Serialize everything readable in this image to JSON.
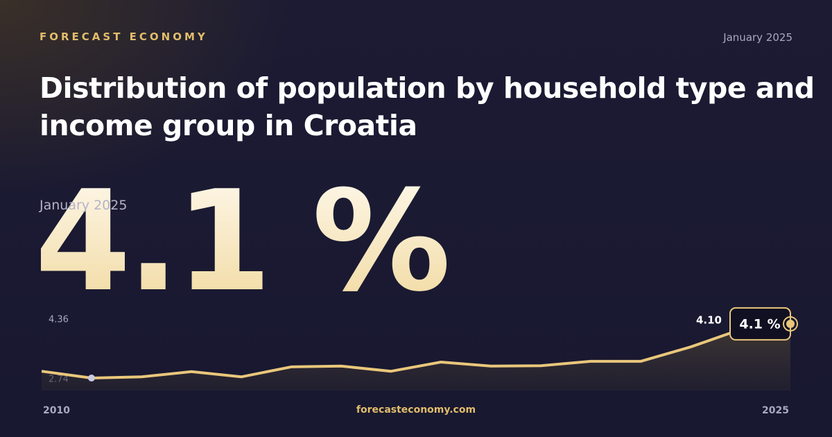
{
  "header": {
    "brand": "FORECAST ECONOMY",
    "date": "January 2025"
  },
  "title": "Distribution of population by household type and income group in Croatia",
  "headline": {
    "date": "January 2025",
    "value": "4.1 %"
  },
  "footer": {
    "site": "forecasteconomy.com"
  },
  "chart_data": {
    "type": "line",
    "x": [
      2010,
      2011,
      2012,
      2013,
      2014,
      2015,
      2016,
      2017,
      2018,
      2019,
      2020,
      2021,
      2022,
      2023,
      2024,
      2025
    ],
    "values": [
      2.91,
      2.74,
      2.77,
      2.9,
      2.77,
      3.02,
      3.04,
      2.91,
      3.14,
      3.04,
      3.05,
      3.16,
      3.16,
      3.52,
      3.96,
      4.1
    ],
    "color": "#e9c77b",
    "xlim": [
      2010,
      2025
    ],
    "ylim": [
      2.74,
      4.36
    ],
    "end_label": "4.10",
    "badge": "4.1 %"
  }
}
